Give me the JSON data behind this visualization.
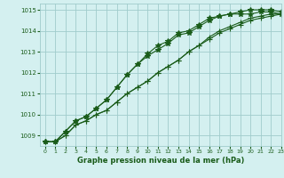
{
  "title": "Graphe pression niveau de la mer (hPa)",
  "bg_color": "#d4f0f0",
  "grid_color": "#a0cccc",
  "line_color": "#1a5c1a",
  "xlim": [
    -0.5,
    23
  ],
  "ylim": [
    1008.5,
    1015.3
  ],
  "yticks": [
    1009,
    1010,
    1011,
    1012,
    1013,
    1014,
    1015
  ],
  "xticks": [
    0,
    1,
    2,
    3,
    4,
    5,
    6,
    7,
    8,
    9,
    10,
    11,
    12,
    13,
    14,
    15,
    16,
    17,
    18,
    19,
    20,
    21,
    22,
    23
  ],
  "series": [
    [
      1008.7,
      1008.7,
      1009.0,
      1009.5,
      1009.7,
      1010.0,
      1010.2,
      1010.6,
      1011.0,
      1011.3,
      1011.6,
      1012.0,
      1012.3,
      1012.6,
      1013.0,
      1013.3,
      1013.6,
      1013.9,
      1014.1,
      1014.3,
      1014.5,
      1014.6,
      1014.7,
      1014.8
    ],
    [
      1008.7,
      1008.7,
      1009.0,
      1009.5,
      1009.7,
      1010.0,
      1010.2,
      1010.6,
      1011.0,
      1011.3,
      1011.6,
      1012.0,
      1012.3,
      1012.6,
      1013.0,
      1013.3,
      1013.7,
      1014.0,
      1014.2,
      1014.4,
      1014.6,
      1014.7,
      1014.8,
      1014.8
    ],
    [
      1008.7,
      1008.7,
      1009.2,
      1009.7,
      1009.9,
      1010.3,
      1010.7,
      1011.3,
      1011.9,
      1012.4,
      1012.8,
      1013.1,
      1013.4,
      1013.8,
      1013.9,
      1014.2,
      1014.5,
      1014.7,
      1014.8,
      1014.8,
      1014.8,
      1014.9,
      1014.9,
      1014.8
    ],
    [
      1008.7,
      1008.7,
      1009.2,
      1009.7,
      1009.9,
      1010.3,
      1010.7,
      1011.3,
      1011.9,
      1012.4,
      1012.9,
      1013.3,
      1013.5,
      1013.9,
      1014.0,
      1014.3,
      1014.6,
      1014.7,
      1014.8,
      1014.9,
      1015.0,
      1015.0,
      1015.0,
      1014.9
    ]
  ]
}
